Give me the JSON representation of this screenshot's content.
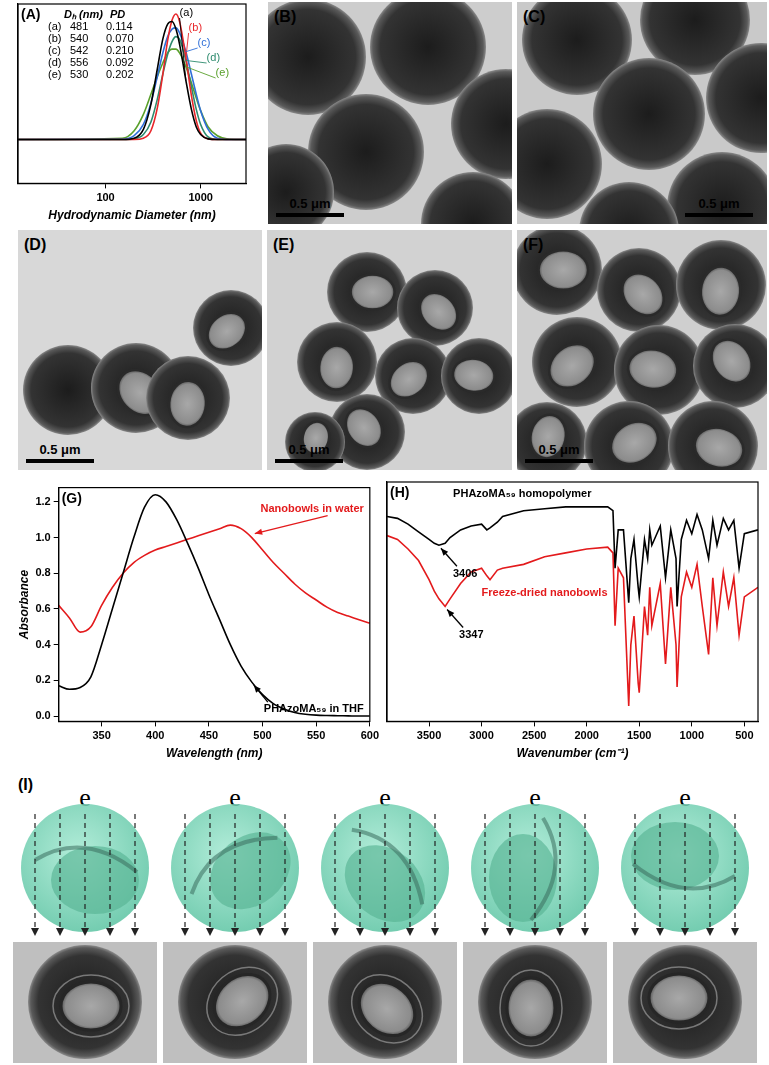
{
  "chart_data": [
    {
      "label": "(A)",
      "type": "line",
      "log": "x",
      "grid": false,
      "tick_labels": "x",
      "x_label": "Hydrodynamic Diameter (nm)",
      "x": [
        12,
        150,
        200,
        250,
        300,
        350,
        400,
        450,
        500,
        550,
        600,
        700,
        800,
        900,
        1000,
        1200,
        1500,
        2000,
        3000
      ],
      "xlim": [
        12,
        3000
      ],
      "xticks": [
        100,
        1000
      ],
      "ylim": [
        -0.35,
        1.08
      ],
      "series": [
        {
          "name": "(a)",
          "color": "#000000",
          "values": [
            0,
            0,
            0.01,
            0.08,
            0.28,
            0.56,
            0.8,
            0.92,
            0.94,
            0.88,
            0.76,
            0.47,
            0.24,
            0.1,
            0.04,
            0.005,
            0,
            0,
            0
          ]
        },
        {
          "name": "(b)",
          "color": "#e8262a",
          "values": [
            0,
            0,
            0,
            0.01,
            0.07,
            0.25,
            0.52,
            0.79,
            0.95,
            1.0,
            0.94,
            0.65,
            0.35,
            0.15,
            0.05,
            0.005,
            0,
            0,
            0
          ]
        },
        {
          "name": "(c)",
          "color": "#2f6fd8",
          "values": [
            0,
            0.002,
            0.03,
            0.12,
            0.29,
            0.5,
            0.69,
            0.82,
            0.88,
            0.89,
            0.85,
            0.7,
            0.52,
            0.36,
            0.23,
            0.08,
            0.01,
            0,
            0
          ]
        },
        {
          "name": "(d)",
          "color": "#2e8b6e",
          "values": [
            0,
            0,
            0.005,
            0.04,
            0.14,
            0.32,
            0.52,
            0.68,
            0.78,
            0.82,
            0.8,
            0.63,
            0.42,
            0.24,
            0.12,
            0.02,
            0,
            0,
            0
          ]
        },
        {
          "name": "(e)",
          "color": "#5aa02c",
          "values": [
            0,
            0.01,
            0.07,
            0.2,
            0.36,
            0.5,
            0.61,
            0.69,
            0.72,
            0.72,
            0.69,
            0.58,
            0.45,
            0.33,
            0.23,
            0.1,
            0.03,
            0.002,
            0
          ]
        }
      ],
      "table": {
        "columns": [
          "Dₕ (nm)",
          "PD"
        ],
        "rows": [
          [
            "(a)",
            "481",
            "0.114"
          ],
          [
            "(b)",
            "540",
            "0.070"
          ],
          [
            "(c)",
            "542",
            "0.210"
          ],
          [
            "(d)",
            "556",
            "0.092"
          ],
          [
            "(e)",
            "530",
            "0.202"
          ]
        ]
      }
    },
    {
      "label": "(G)",
      "type": "line",
      "grid": false,
      "x_label": "Wavelength (nm)",
      "y_label": "Absorbance",
      "x": [
        310,
        320,
        330,
        340,
        350,
        360,
        370,
        380,
        390,
        400,
        410,
        420,
        430,
        440,
        450,
        460,
        470,
        480,
        490,
        500,
        510,
        520,
        530,
        540,
        550,
        560,
        570,
        580,
        590,
        600
      ],
      "xlim": [
        310,
        600
      ],
      "xticks": [
        350,
        400,
        450,
        500,
        550,
        600
      ],
      "ylim": [
        -0.03,
        1.28
      ],
      "yticks": [
        {
          "value": 0,
          "label": "0.0"
        },
        0.2,
        0.4,
        0.6,
        0.8,
        {
          "value": 1,
          "label": "1.0"
        },
        1.2
      ],
      "series": [
        {
          "name": "PHAzoMA₅₉ in THF",
          "color": "#000000",
          "values": [
            0.17,
            0.15,
            0.16,
            0.22,
            0.4,
            0.6,
            0.8,
            1.0,
            1.17,
            1.24,
            1.2,
            1.1,
            0.97,
            0.83,
            0.68,
            0.54,
            0.4,
            0.28,
            0.19,
            0.12,
            0.07,
            0.04,
            0.02,
            0.01,
            0.005,
            0.003,
            0.002,
            0.001,
            0,
            0
          ]
        },
        {
          "name": "Nanobowls in water",
          "color": "#e31a1c",
          "values": [
            0.62,
            0.55,
            0.47,
            0.5,
            0.62,
            0.72,
            0.8,
            0.86,
            0.9,
            0.93,
            0.95,
            0.97,
            0.99,
            1.01,
            1.03,
            1.05,
            1.07,
            1.05,
            1.0,
            0.93,
            0.86,
            0.8,
            0.74,
            0.69,
            0.65,
            0.61,
            0.58,
            0.56,
            0.54,
            0.52
          ]
        }
      ]
    },
    {
      "label": "(H)",
      "type": "line",
      "grid": false,
      "tick_labels": "x",
      "x_label": "Wavenumber (cm⁻¹)",
      "x": [
        3900,
        3800,
        3700,
        3600,
        3500,
        3450,
        3406,
        3347,
        3300,
        3200,
        3100,
        3000,
        2950,
        2920,
        2850,
        2800,
        2600,
        2400,
        2200,
        2000,
        1800,
        1750,
        1730,
        1700,
        1650,
        1600,
        1580,
        1550,
        1510,
        1500,
        1450,
        1420,
        1400,
        1380,
        1300,
        1250,
        1200,
        1150,
        1140,
        1100,
        1050,
        1000,
        950,
        900,
        840,
        800,
        760,
        700,
        650,
        600,
        550,
        500,
        370
      ],
      "xlim": [
        3900,
        370
      ],
      "xticks": [
        3500,
        3000,
        2500,
        2000,
        1500,
        1000,
        500
      ],
      "ylim": [
        0,
        1.25
      ],
      "series": [
        {
          "name": "PHAzoMA₅₉ homopolymer",
          "color": "#000000",
          "values": [
            1.07,
            1.06,
            1.03,
            0.99,
            0.95,
            0.93,
            0.92,
            0.93,
            0.96,
            1.0,
            1.02,
            1.03,
            1.0,
            1.01,
            1.04,
            1.07,
            1.1,
            1.11,
            1.12,
            1.12,
            1.12,
            1.1,
            0.8,
            1.0,
            1.0,
            0.62,
            0.85,
            0.95,
            0.7,
            0.65,
            0.95,
            0.85,
            1.0,
            0.92,
            1.02,
            0.75,
            1.0,
            0.85,
            0.6,
            0.95,
            1.05,
            0.98,
            1.08,
            1.0,
            0.85,
            1.05,
            0.92,
            1.06,
            1.0,
            1.05,
            0.8,
            0.98,
            1.0
          ]
        },
        {
          "name": "Freeze-dried nanobowls",
          "color": "#e31a1c",
          "values": [
            0.97,
            0.95,
            0.9,
            0.84,
            0.74,
            0.68,
            0.64,
            0.6,
            0.64,
            0.72,
            0.78,
            0.8,
            0.76,
            0.74,
            0.79,
            0.8,
            0.82,
            0.86,
            0.88,
            0.9,
            0.91,
            0.88,
            0.5,
            0.8,
            0.75,
            0.08,
            0.4,
            0.55,
            0.2,
            0.15,
            0.6,
            0.45,
            0.7,
            0.5,
            0.72,
            0.3,
            0.7,
            0.4,
            0.18,
            0.65,
            0.78,
            0.7,
            0.82,
            0.6,
            0.35,
            0.75,
            0.5,
            0.78,
            0.6,
            0.75,
            0.45,
            0.65,
            0.7
          ]
        }
      ],
      "annotations": [
        {
          "text": "3406",
          "x": 3406,
          "series": "PHAzoMA₅₉ homopolymer"
        },
        {
          "text": "3347",
          "x": 3347,
          "series": "Freeze-dried nanobowls"
        }
      ]
    }
  ],
  "images": [
    {
      "label": "(B)",
      "scale_bar": "0.5 μm"
    },
    {
      "label": "(C)",
      "scale_bar": "0.5 μm"
    },
    {
      "label": "(D)",
      "scale_bar": "0.5 μm"
    },
    {
      "label": "(E)",
      "scale_bar": "0.5 μm"
    },
    {
      "label": "(F)",
      "scale_bar": "0.5 μm"
    }
  ],
  "schematic": {
    "label": "(I)",
    "views": [
      {
        "beam": "e"
      },
      {
        "beam": "e"
      },
      {
        "beam": "e"
      },
      {
        "beam": "e"
      },
      {
        "beam": "e"
      }
    ]
  }
}
